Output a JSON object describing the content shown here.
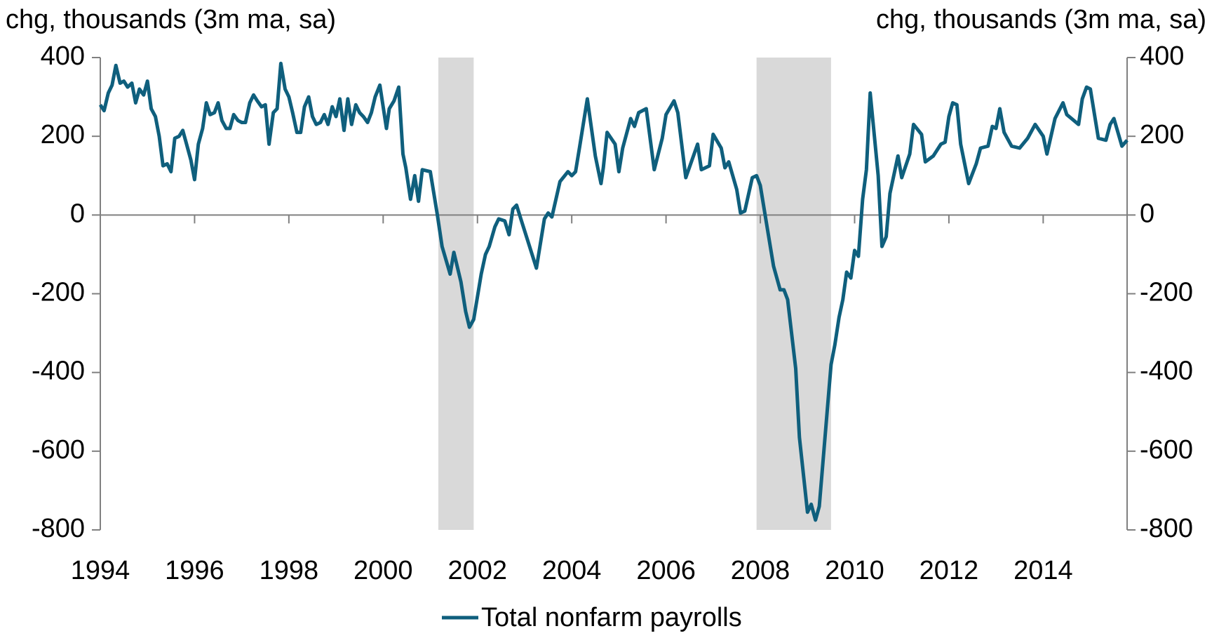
{
  "chart_data": {
    "type": "line",
    "y_label": "chg, thousands (3m ma, sa)",
    "y2_label": "chg, thousands (3m ma, sa)",
    "xlim": [
      1994,
      2015.78
    ],
    "xticks": [
      1994,
      1996,
      1998,
      2000,
      2002,
      2004,
      2006,
      2008,
      2010,
      2012,
      2014
    ],
    "ylim": [
      -800,
      400
    ],
    "yticks": [
      -800,
      -600,
      -400,
      -200,
      0,
      200,
      400
    ],
    "y2lim": [
      -800,
      400
    ],
    "y2ticks": [
      -800,
      -600,
      -400,
      -200,
      0,
      200,
      400
    ],
    "shaded": [
      [
        2001.17,
        2001.92
      ],
      [
        2007.92,
        2009.5
      ]
    ],
    "legend": "bottom",
    "x": [
      1994.0,
      1994.08,
      1994.17,
      1994.25,
      1994.33,
      1994.42,
      1994.5,
      1994.58,
      1994.67,
      1994.75,
      1994.83,
      1994.92,
      1995.0,
      1995.08,
      1995.17,
      1995.25,
      1995.33,
      1995.42,
      1995.5,
      1995.58,
      1995.67,
      1995.75,
      1995.83,
      1995.92,
      1996.0,
      1996.08,
      1996.17,
      1996.25,
      1996.33,
      1996.42,
      1996.5,
      1996.58,
      1996.67,
      1996.75,
      1996.83,
      1996.92,
      1997.0,
      1997.08,
      1997.17,
      1997.25,
      1997.33,
      1997.42,
      1997.5,
      1997.58,
      1997.67,
      1997.75,
      1997.83,
      1997.92,
      1998.0,
      1998.08,
      1998.17,
      1998.25,
      1998.33,
      1998.42,
      1998.5,
      1998.58,
      1998.67,
      1998.75,
      1998.83,
      1998.92,
      1999.0,
      1999.08,
      1999.17,
      1999.25,
      1999.33,
      1999.42,
      1999.5,
      1999.58,
      1999.67,
      1999.75,
      1999.83,
      1999.93,
      2000.07,
      2000.13,
      2000.23,
      2000.33,
      2000.42,
      2000.48,
      2000.58,
      2000.67,
      2000.75,
      2000.83,
      2001.0,
      2001.15,
      2001.25,
      2001.42,
      2001.5,
      2001.65,
      2001.75,
      2001.83,
      2001.92,
      2002.08,
      2002.17,
      2002.25,
      2002.37,
      2002.45,
      2002.58,
      2002.67,
      2002.75,
      2002.83,
      2002.92,
      2003.08,
      2003.25,
      2003.42,
      2003.5,
      2003.58,
      2003.75,
      2003.92,
      2004.0,
      2004.08,
      2004.17,
      2004.33,
      2004.5,
      2004.62,
      2004.67,
      2004.75,
      2004.92,
      2005.0,
      2005.08,
      2005.25,
      2005.33,
      2005.42,
      2005.58,
      2005.75,
      2005.92,
      2006.0,
      2006.17,
      2006.25,
      2006.42,
      2006.67,
      2006.75,
      2006.92,
      2007.0,
      2007.17,
      2007.25,
      2007.33,
      2007.5,
      2007.58,
      2007.67,
      2007.83,
      2007.92,
      2008.0,
      2008.17,
      2008.28,
      2008.42,
      2008.5,
      2008.58,
      2008.75,
      2008.83,
      2009.0,
      2009.08,
      2009.17,
      2009.25,
      2009.5,
      2009.58,
      2009.67,
      2009.75,
      2009.83,
      2009.92,
      2010.0,
      2010.08,
      2010.17,
      2010.25,
      2010.33,
      2010.42,
      2010.5,
      2010.58,
      2010.67,
      2010.75,
      2010.92,
      2011.0,
      2011.17,
      2011.25,
      2011.42,
      2011.5,
      2011.67,
      2011.83,
      2011.92,
      2012.0,
      2012.08,
      2012.17,
      2012.25,
      2012.42,
      2012.58,
      2012.67,
      2012.83,
      2012.92,
      2013.0,
      2013.08,
      2013.17,
      2013.33,
      2013.5,
      2013.67,
      2013.83,
      2014.0,
      2014.08,
      2014.25,
      2014.42,
      2014.5,
      2014.75,
      2014.83,
      2014.92,
      2015.0,
      2015.17,
      2015.33,
      2015.42,
      2015.5,
      2015.67,
      2015.78
    ],
    "series": [
      {
        "name": "Total nonfarm payrolls",
        "color": "#0f5f7d",
        "values": [
          280,
          265,
          310,
          330,
          380,
          335,
          340,
          325,
          335,
          285,
          320,
          305,
          340,
          270,
          250,
          200,
          125,
          130,
          110,
          195,
          200,
          215,
          180,
          140,
          90,
          180,
          220,
          285,
          255,
          260,
          285,
          240,
          220,
          220,
          255,
          240,
          235,
          235,
          285,
          305,
          290,
          275,
          280,
          180,
          260,
          270,
          385,
          320,
          300,
          260,
          210,
          210,
          275,
          300,
          250,
          230,
          235,
          255,
          230,
          275,
          250,
          295,
          215,
          295,
          230,
          280,
          260,
          250,
          235,
          260,
          300,
          330,
          220,
          270,
          290,
          325,
          155,
          120,
          40,
          100,
          35,
          115,
          110,
          0,
          -80,
          -150,
          -95,
          -170,
          -245,
          -285,
          -265,
          -150,
          -100,
          -80,
          -30,
          -10,
          -15,
          -50,
          15,
          25,
          -10,
          -70,
          -135,
          -10,
          5,
          -5,
          85,
          110,
          100,
          110,
          175,
          295,
          150,
          80,
          120,
          210,
          180,
          110,
          170,
          245,
          225,
          260,
          270,
          115,
          195,
          255,
          290,
          260,
          95,
          180,
          115,
          125,
          205,
          170,
          120,
          135,
          65,
          5,
          10,
          95,
          100,
          75,
          -50,
          -130,
          -190,
          -190,
          -215,
          -390,
          -565,
          -755,
          -735,
          -775,
          -740,
          -380,
          -330,
          -260,
          -215,
          -145,
          -160,
          -90,
          -105,
          40,
          115,
          310,
          200,
          100,
          -80,
          -55,
          55,
          150,
          95,
          155,
          230,
          205,
          135,
          150,
          180,
          185,
          250,
          285,
          280,
          180,
          80,
          130,
          170,
          175,
          225,
          220,
          270,
          210,
          175,
          170,
          195,
          230,
          200,
          155,
          245,
          285,
          255,
          230,
          295,
          325,
          320,
          195,
          190,
          230,
          245,
          175,
          190
        ]
      }
    ]
  }
}
